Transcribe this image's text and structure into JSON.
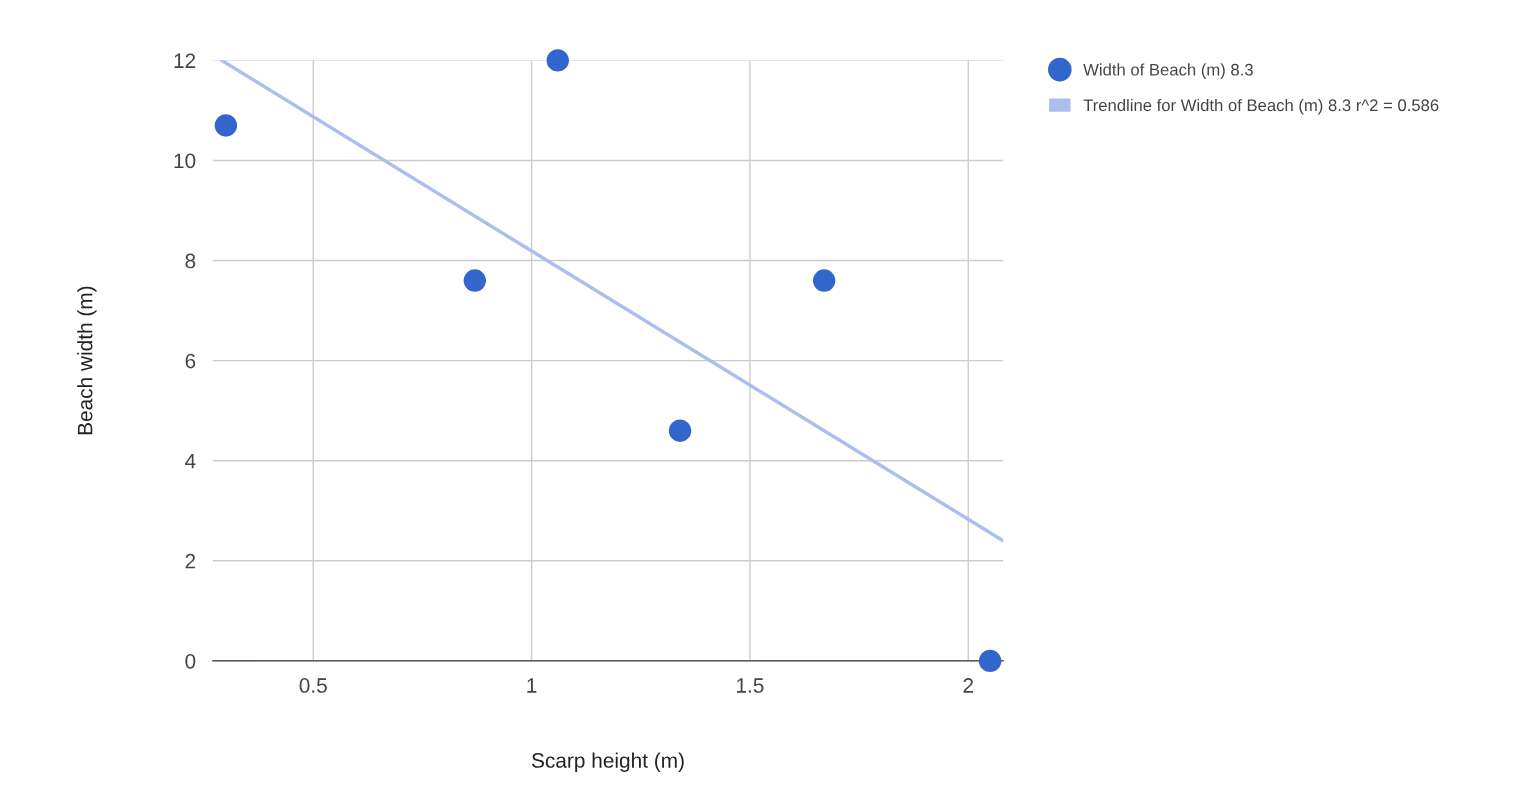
{
  "chart_data": {
    "type": "scatter",
    "xlabel": "Scarp height (m)",
    "ylabel": "Beach width (m)",
    "series": [
      {
        "name": "Width of Beach (m) 8.3",
        "color": "#3366cc",
        "marker": "circle",
        "x": [
          0.3,
          0.87,
          1.06,
          1.34,
          1.67,
          2.05
        ],
        "values": [
          10.7,
          7.6,
          12,
          4.6,
          7.6,
          0
        ]
      },
      {
        "name": "Trendline for Width of Beach (m) 8.3 r^2 = 0.586",
        "color": "#aabfee",
        "type": "line",
        "marker": "none",
        "x": [
          0.29,
          2.08
        ],
        "values": [
          12,
          2.4
        ]
      }
    ],
    "xlim": [
      0.27,
      2.08
    ],
    "xticks": [
      0.5,
      1,
      1.5,
      2
    ],
    "ylim": [
      0,
      12
    ],
    "yticks": [
      0,
      2,
      4,
      6,
      8,
      10,
      12
    ],
    "grid": true,
    "legend": "right"
  }
}
